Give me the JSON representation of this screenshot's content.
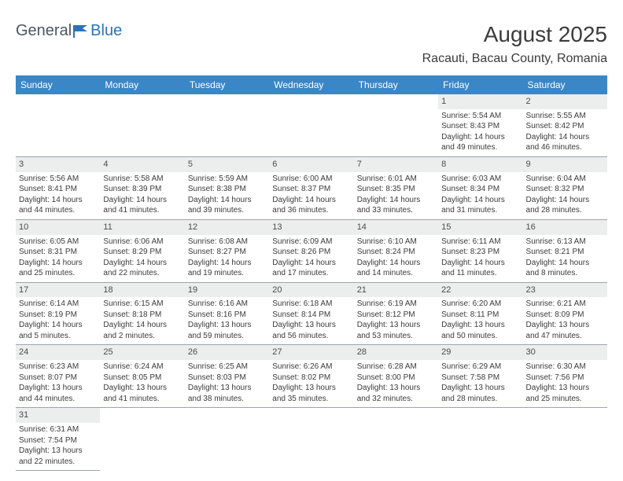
{
  "logo": {
    "general": "General",
    "blue": "Blue"
  },
  "title": "August 2025",
  "location": "Racauti, Bacau County, Romania",
  "colors": {
    "header_bg": "#3b86c6",
    "header_text": "#ffffff",
    "daynum_bg": "#eceeee",
    "text": "#3b3b3b",
    "border": "#9ca3af",
    "logo_blue": "#2b73b8",
    "logo_gray": "#4b5563"
  },
  "weekdays": [
    "Sunday",
    "Monday",
    "Tuesday",
    "Wednesday",
    "Thursday",
    "Friday",
    "Saturday"
  ],
  "weeks": [
    [
      null,
      null,
      null,
      null,
      null,
      {
        "n": "1",
        "sr": "5:54 AM",
        "ss": "8:43 PM",
        "dl": "14 hours and 49 minutes."
      },
      {
        "n": "2",
        "sr": "5:55 AM",
        "ss": "8:42 PM",
        "dl": "14 hours and 46 minutes."
      }
    ],
    [
      {
        "n": "3",
        "sr": "5:56 AM",
        "ss": "8:41 PM",
        "dl": "14 hours and 44 minutes."
      },
      {
        "n": "4",
        "sr": "5:58 AM",
        "ss": "8:39 PM",
        "dl": "14 hours and 41 minutes."
      },
      {
        "n": "5",
        "sr": "5:59 AM",
        "ss": "8:38 PM",
        "dl": "14 hours and 39 minutes."
      },
      {
        "n": "6",
        "sr": "6:00 AM",
        "ss": "8:37 PM",
        "dl": "14 hours and 36 minutes."
      },
      {
        "n": "7",
        "sr": "6:01 AM",
        "ss": "8:35 PM",
        "dl": "14 hours and 33 minutes."
      },
      {
        "n": "8",
        "sr": "6:03 AM",
        "ss": "8:34 PM",
        "dl": "14 hours and 31 minutes."
      },
      {
        "n": "9",
        "sr": "6:04 AM",
        "ss": "8:32 PM",
        "dl": "14 hours and 28 minutes."
      }
    ],
    [
      {
        "n": "10",
        "sr": "6:05 AM",
        "ss": "8:31 PM",
        "dl": "14 hours and 25 minutes."
      },
      {
        "n": "11",
        "sr": "6:06 AM",
        "ss": "8:29 PM",
        "dl": "14 hours and 22 minutes."
      },
      {
        "n": "12",
        "sr": "6:08 AM",
        "ss": "8:27 PM",
        "dl": "14 hours and 19 minutes."
      },
      {
        "n": "13",
        "sr": "6:09 AM",
        "ss": "8:26 PM",
        "dl": "14 hours and 17 minutes."
      },
      {
        "n": "14",
        "sr": "6:10 AM",
        "ss": "8:24 PM",
        "dl": "14 hours and 14 minutes."
      },
      {
        "n": "15",
        "sr": "6:11 AM",
        "ss": "8:23 PM",
        "dl": "14 hours and 11 minutes."
      },
      {
        "n": "16",
        "sr": "6:13 AM",
        "ss": "8:21 PM",
        "dl": "14 hours and 8 minutes."
      }
    ],
    [
      {
        "n": "17",
        "sr": "6:14 AM",
        "ss": "8:19 PM",
        "dl": "14 hours and 5 minutes."
      },
      {
        "n": "18",
        "sr": "6:15 AM",
        "ss": "8:18 PM",
        "dl": "14 hours and 2 minutes."
      },
      {
        "n": "19",
        "sr": "6:16 AM",
        "ss": "8:16 PM",
        "dl": "13 hours and 59 minutes."
      },
      {
        "n": "20",
        "sr": "6:18 AM",
        "ss": "8:14 PM",
        "dl": "13 hours and 56 minutes."
      },
      {
        "n": "21",
        "sr": "6:19 AM",
        "ss": "8:12 PM",
        "dl": "13 hours and 53 minutes."
      },
      {
        "n": "22",
        "sr": "6:20 AM",
        "ss": "8:11 PM",
        "dl": "13 hours and 50 minutes."
      },
      {
        "n": "23",
        "sr": "6:21 AM",
        "ss": "8:09 PM",
        "dl": "13 hours and 47 minutes."
      }
    ],
    [
      {
        "n": "24",
        "sr": "6:23 AM",
        "ss": "8:07 PM",
        "dl": "13 hours and 44 minutes."
      },
      {
        "n": "25",
        "sr": "6:24 AM",
        "ss": "8:05 PM",
        "dl": "13 hours and 41 minutes."
      },
      {
        "n": "26",
        "sr": "6:25 AM",
        "ss": "8:03 PM",
        "dl": "13 hours and 38 minutes."
      },
      {
        "n": "27",
        "sr": "6:26 AM",
        "ss": "8:02 PM",
        "dl": "13 hours and 35 minutes."
      },
      {
        "n": "28",
        "sr": "6:28 AM",
        "ss": "8:00 PM",
        "dl": "13 hours and 32 minutes."
      },
      {
        "n": "29",
        "sr": "6:29 AM",
        "ss": "7:58 PM",
        "dl": "13 hours and 28 minutes."
      },
      {
        "n": "30",
        "sr": "6:30 AM",
        "ss": "7:56 PM",
        "dl": "13 hours and 25 minutes."
      }
    ],
    [
      {
        "n": "31",
        "sr": "6:31 AM",
        "ss": "7:54 PM",
        "dl": "13 hours and 22 minutes."
      },
      null,
      null,
      null,
      null,
      null,
      null
    ]
  ],
  "labels": {
    "sunrise": "Sunrise: ",
    "sunset": "Sunset: ",
    "daylight": "Daylight: "
  }
}
